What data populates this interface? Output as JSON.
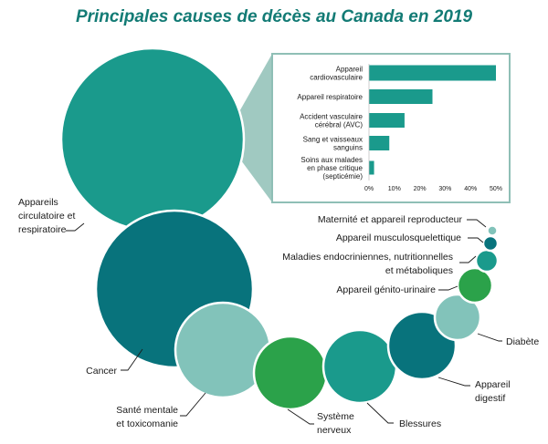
{
  "chart_data": [
    {
      "type": "bubble",
      "title": "Principales causes de décès au Canada en 2019",
      "items": [
        {
          "label": [
            "Appareils",
            "circulatoire et",
            "respiratoire"
          ],
          "color": "#1a9a8c"
        },
        {
          "label": [
            "Cancer"
          ],
          "color": "#08737c"
        },
        {
          "label": [
            "Santé mentale",
            "et toxicomanie"
          ],
          "color": "#82c3ba"
        },
        {
          "label": [
            "Système",
            "nerveux"
          ],
          "color": "#2ba24a"
        },
        {
          "label": [
            "Blessures"
          ],
          "color": "#1a9a8c"
        },
        {
          "label": [
            "Appareil",
            "digestif"
          ],
          "color": "#08737c"
        },
        {
          "label": [
            "Diabète"
          ],
          "color": "#82c3ba"
        },
        {
          "label": [
            "Appareil génito-urinaire"
          ],
          "color": "#2ba24a"
        },
        {
          "label": [
            "Maladies endocriniennes, nutritionnelles",
            "et métaboliques"
          ],
          "color": "#1a9a8c"
        },
        {
          "label": [
            "Appareil musculosquelettique"
          ],
          "color": "#08737c"
        },
        {
          "label": [
            "Maternité et appareil reproducteur"
          ],
          "color": "#82c3ba"
        }
      ]
    },
    {
      "type": "bar",
      "orientation": "horizontal",
      "categories": [
        [
          "Appareil",
          "cardiovasculaire"
        ],
        [
          "Appareil respiratoire"
        ],
        [
          "Accident vasculaire",
          "cérébral (AVC)"
        ],
        [
          "Sang et vaisseaux",
          "sanguins"
        ],
        [
          "Soins aux malades",
          "en phase critique",
          "(septicémie)"
        ]
      ],
      "values": [
        50,
        25,
        14,
        8,
        2
      ],
      "xlim": [
        0,
        50
      ],
      "xticks": [
        "0%",
        "10%",
        "20%",
        "30%",
        "40%",
        "50%"
      ],
      "color": "#1a9a8c"
    }
  ],
  "colors": {
    "title": "#137b75",
    "frame": "#8fbfb6",
    "leader": "#1a1a1a",
    "funnel": "#8fbfb6"
  }
}
